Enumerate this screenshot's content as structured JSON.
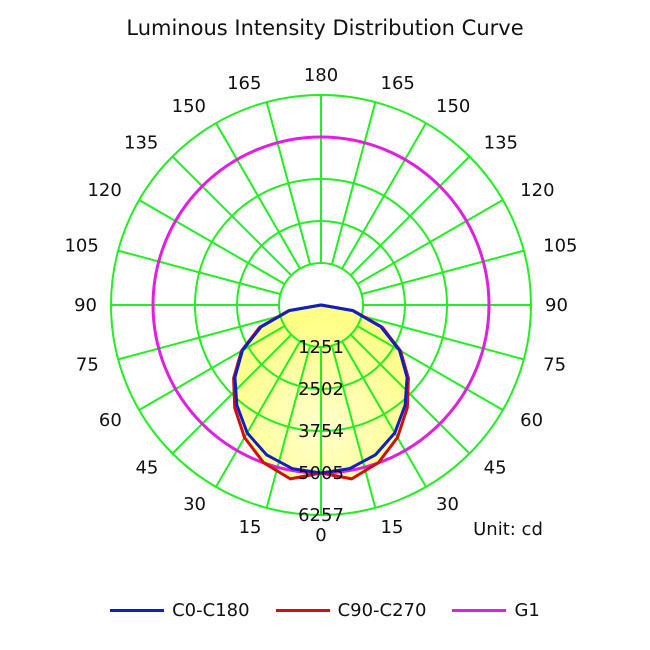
{
  "chart_data": {
    "type": "polar",
    "title": "Luminous Intensity Distribution Curve",
    "unit_label": "Unit: cd",
    "angle_labels_left": [
      "0",
      "15",
      "30",
      "45",
      "60",
      "75",
      "90",
      "105",
      "120",
      "135",
      "150",
      "165",
      "180"
    ],
    "angle_labels_right": [
      "15",
      "30",
      "45",
      "60",
      "75",
      "90",
      "105",
      "120",
      "135",
      "150",
      "165"
    ],
    "radial_labels": [
      "1251",
      "2502",
      "3754",
      "5005",
      "6257"
    ],
    "r_max": 6257,
    "grid": true,
    "legend_position": "bottom",
    "colors": {
      "grid": "#22ee22",
      "C0-C180": "#1020c0",
      "C90-C270": "#d01010",
      "G1": "#e020e0",
      "fill": "#ffff99"
    },
    "series": [
      {
        "name": "C0-C180",
        "angles": [
          0,
          10,
          20,
          30,
          40,
          50,
          60,
          70,
          80,
          90
        ],
        "values": [
          5005,
          4950,
          4750,
          4400,
          3900,
          3350,
          2700,
          1900,
          950,
          0
        ]
      },
      {
        "name": "C90-C270",
        "angles": [
          0,
          10,
          20,
          30,
          40,
          50,
          60,
          70,
          80,
          90
        ],
        "values": [
          5005,
          5260,
          5000,
          4560,
          4000,
          3400,
          2740,
          1950,
          980,
          0
        ]
      },
      {
        "name": "G1",
        "angles": [
          0,
          180
        ],
        "values": [
          5005,
          5005
        ]
      }
    ]
  }
}
